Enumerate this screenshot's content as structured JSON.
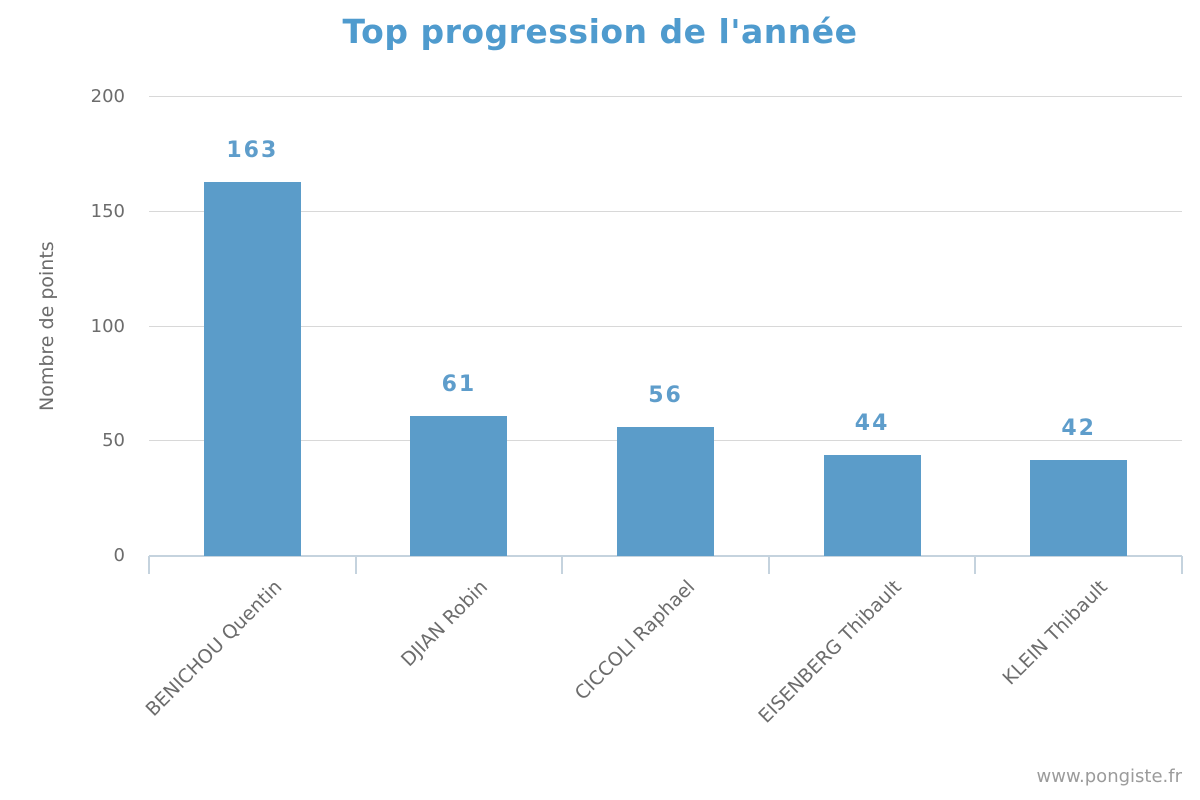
{
  "chart_data": {
    "type": "bar",
    "title": "Top progression de l'année",
    "categories": [
      "BENICHOU Quentin",
      "DJIAN Robin",
      "CICCOLI Raphael",
      "EISENBERG Thibault",
      "KLEIN Thibault"
    ],
    "values": [
      163,
      61,
      56,
      44,
      42
    ],
    "xlabel": "",
    "ylabel": "Nombre de points",
    "ylim": [
      0,
      200
    ],
    "yticks": [
      0,
      50,
      100,
      150,
      200
    ],
    "grid": true,
    "legend": false,
    "colors": {
      "bar": "#5b9cc9",
      "title": "#4f9bce",
      "value_label": "#5e9dcb",
      "grid_line": "#d8d8d8",
      "axis_line": "#c5d3de",
      "axis_text": "#6c6c6c",
      "watermark": "#9b9b9b"
    }
  },
  "watermark": "www.pongiste.fr"
}
